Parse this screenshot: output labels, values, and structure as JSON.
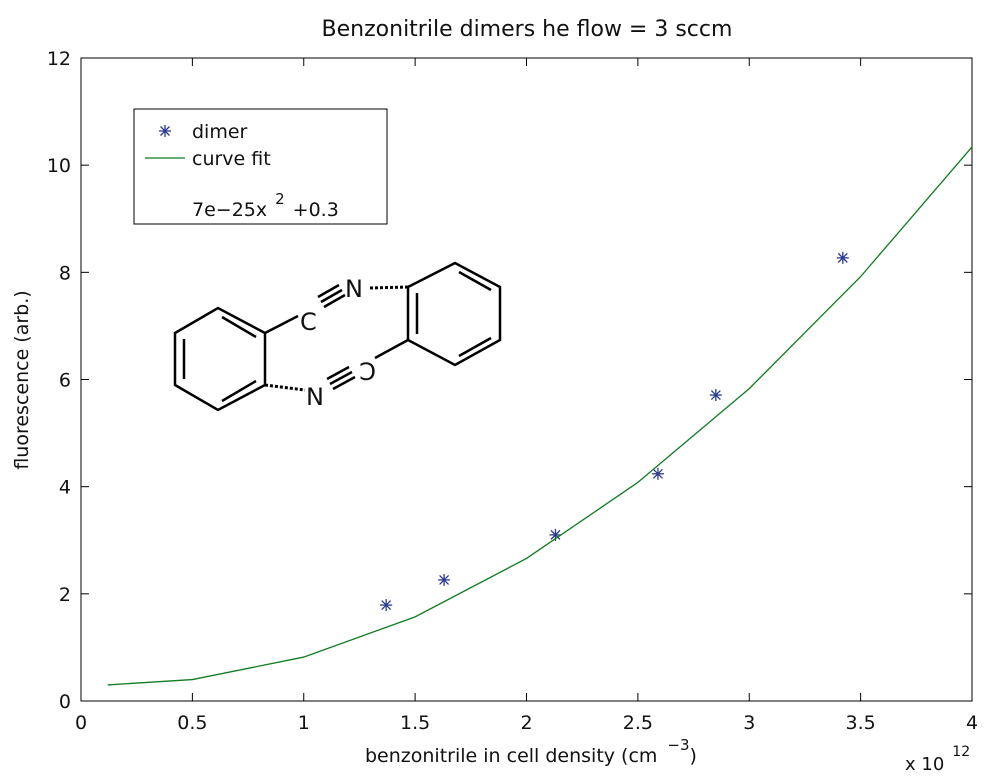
{
  "chart_data": {
    "type": "scatter",
    "title": "Benzonitrile dimers he flow = 3 sccm",
    "x_label": "benzonitrile in cell density (cm",
    "x_label_sup": "−3",
    "x_label_end": ")",
    "x_multiplier": "x 10",
    "x_multiplier_sup": "12",
    "y_label": "fluorescence (arb.)",
    "xlim": [
      0,
      4
    ],
    "ylim": [
      0,
      12
    ],
    "xticks": [
      0,
      0.5,
      1,
      1.5,
      2,
      2.5,
      3,
      3.5,
      4
    ],
    "yticks": [
      0,
      2,
      4,
      6,
      8,
      10,
      12
    ],
    "series": [
      {
        "name": "dimer",
        "color": "#2b3a8f",
        "marker": "*",
        "x": [
          1.37,
          1.63,
          2.13,
          2.59,
          2.85,
          3.42
        ],
        "values": [
          1.79,
          2.26,
          3.1,
          4.24,
          5.71,
          8.27
        ]
      },
      {
        "name": "curve fit",
        "color": "#107a20",
        "marker": "line",
        "x": [
          0.12,
          0.5,
          1,
          1.5,
          2,
          2.5,
          3,
          3.5,
          4
        ],
        "values": [
          0.3,
          0.4,
          0.82,
          1.57,
          2.66,
          4.08,
          5.83,
          7.92,
          10.34
        ]
      }
    ],
    "fit_formula": "7e−25x",
    "fit_formula_sup": "2",
    "fit_formula_end": "+0.3",
    "structure_labels": [
      "C",
      "N",
      "N",
      "C"
    ]
  }
}
